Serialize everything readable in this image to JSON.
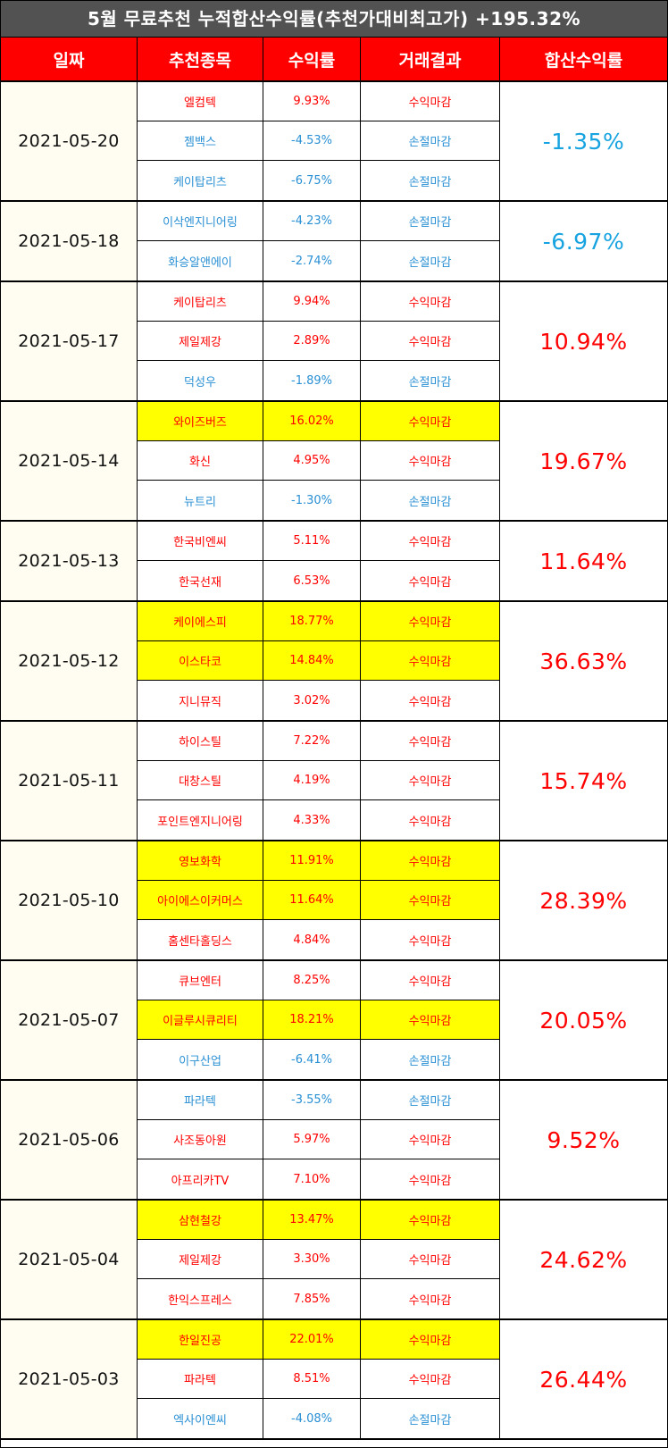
{
  "title": "5월 무료추천 누적합산수익률(추천가대비최고가) +195.32%",
  "headers": {
    "date": "일짜",
    "stock": "추천종목",
    "rate": "수익률",
    "result": "거래결과",
    "total": "합산수익률"
  },
  "colors": {
    "profit": "#ff0000",
    "loss": "#2a90d4",
    "highlight": "#ffff00",
    "header_bg": "#ff0000",
    "title_bg": "#525252"
  },
  "groups": [
    {
      "date": "2021-05-20",
      "total": "-1.35%",
      "total_sign": "neg",
      "rows": [
        {
          "stock": "엘컴텍",
          "rate": "9.93%",
          "result": "수익마감",
          "type": "profit",
          "highlight": false
        },
        {
          "stock": "젬백스",
          "rate": "-4.53%",
          "result": "손절마감",
          "type": "loss",
          "highlight": false
        },
        {
          "stock": "케이탑리츠",
          "rate": "-6.75%",
          "result": "손절마감",
          "type": "loss",
          "highlight": false
        }
      ]
    },
    {
      "date": "2021-05-18",
      "total": "-6.97%",
      "total_sign": "neg",
      "rows": [
        {
          "stock": "이삭엔지니어링",
          "rate": "-4.23%",
          "result": "손절마감",
          "type": "loss",
          "highlight": false
        },
        {
          "stock": "화승알앤에이",
          "rate": "-2.74%",
          "result": "손절마감",
          "type": "loss",
          "highlight": false
        }
      ]
    },
    {
      "date": "2021-05-17",
      "total": "10.94%",
      "total_sign": "pos",
      "rows": [
        {
          "stock": "케이탑리츠",
          "rate": "9.94%",
          "result": "수익마감",
          "type": "profit",
          "highlight": false
        },
        {
          "stock": "제일제강",
          "rate": "2.89%",
          "result": "수익마감",
          "type": "profit",
          "highlight": false
        },
        {
          "stock": "덕성우",
          "rate": "-1.89%",
          "result": "손절마감",
          "type": "loss",
          "highlight": false
        }
      ]
    },
    {
      "date": "2021-05-14",
      "total": "19.67%",
      "total_sign": "pos",
      "rows": [
        {
          "stock": "와이즈버즈",
          "rate": "16.02%",
          "result": "수익마감",
          "type": "profit",
          "highlight": true
        },
        {
          "stock": "화신",
          "rate": "4.95%",
          "result": "수익마감",
          "type": "profit",
          "highlight": false
        },
        {
          "stock": "뉴트리",
          "rate": "-1.30%",
          "result": "손절마감",
          "type": "loss",
          "highlight": false
        }
      ]
    },
    {
      "date": "2021-05-13",
      "total": "11.64%",
      "total_sign": "pos",
      "rows": [
        {
          "stock": "한국비엔씨",
          "rate": "5.11%",
          "result": "수익마감",
          "type": "profit",
          "highlight": false
        },
        {
          "stock": "한국선재",
          "rate": "6.53%",
          "result": "수익마감",
          "type": "profit",
          "highlight": false
        }
      ]
    },
    {
      "date": "2021-05-12",
      "total": "36.63%",
      "total_sign": "pos",
      "rows": [
        {
          "stock": "케이에스피",
          "rate": "18.77%",
          "result": "수익마감",
          "type": "profit",
          "highlight": true
        },
        {
          "stock": "이스타코",
          "rate": "14.84%",
          "result": "수익마감",
          "type": "profit",
          "highlight": true
        },
        {
          "stock": "지니뮤직",
          "rate": "3.02%",
          "result": "수익마감",
          "type": "profit",
          "highlight": false
        }
      ]
    },
    {
      "date": "2021-05-11",
      "total": "15.74%",
      "total_sign": "pos",
      "rows": [
        {
          "stock": "하이스틸",
          "rate": "7.22%",
          "result": "수익마감",
          "type": "profit",
          "highlight": false
        },
        {
          "stock": "대창스틸",
          "rate": "4.19%",
          "result": "수익마감",
          "type": "profit",
          "highlight": false
        },
        {
          "stock": "포인트엔지니어링",
          "rate": "4.33%",
          "result": "수익마감",
          "type": "profit",
          "highlight": false
        }
      ]
    },
    {
      "date": "2021-05-10",
      "total": "28.39%",
      "total_sign": "pos",
      "rows": [
        {
          "stock": "영보화학",
          "rate": "11.91%",
          "result": "수익마감",
          "type": "profit",
          "highlight": true
        },
        {
          "stock": "아이에스이커머스",
          "rate": "11.64%",
          "result": "수익마감",
          "type": "profit",
          "highlight": true
        },
        {
          "stock": "홈센타홀딩스",
          "rate": "4.84%",
          "result": "수익마감",
          "type": "profit",
          "highlight": false
        }
      ]
    },
    {
      "date": "2021-05-07",
      "total": "20.05%",
      "total_sign": "pos",
      "rows": [
        {
          "stock": "큐브엔터",
          "rate": "8.25%",
          "result": "수익마감",
          "type": "profit",
          "highlight": false
        },
        {
          "stock": "이글루시큐리티",
          "rate": "18.21%",
          "result": "수익마감",
          "type": "profit",
          "highlight": true
        },
        {
          "stock": "이구산업",
          "rate": "-6.41%",
          "result": "손절마감",
          "type": "loss",
          "highlight": false
        }
      ]
    },
    {
      "date": "2021-05-06",
      "total": "9.52%",
      "total_sign": "pos",
      "rows": [
        {
          "stock": "파라텍",
          "rate": "-3.55%",
          "result": "손절마감",
          "type": "loss",
          "highlight": false
        },
        {
          "stock": "사조동아원",
          "rate": "5.97%",
          "result": "수익마감",
          "type": "profit",
          "highlight": false
        },
        {
          "stock": "아프리카TV",
          "rate": "7.10%",
          "result": "수익마감",
          "type": "profit",
          "highlight": false
        }
      ]
    },
    {
      "date": "2021-05-04",
      "total": "24.62%",
      "total_sign": "pos",
      "rows": [
        {
          "stock": "삼현철강",
          "rate": "13.47%",
          "result": "수익마감",
          "type": "profit",
          "highlight": true
        },
        {
          "stock": "제일제강",
          "rate": "3.30%",
          "result": "수익마감",
          "type": "profit",
          "highlight": false
        },
        {
          "stock": "한익스프레스",
          "rate": "7.85%",
          "result": "수익마감",
          "type": "profit",
          "highlight": false
        }
      ]
    },
    {
      "date": "2021-05-03",
      "total": "26.44%",
      "total_sign": "pos",
      "rows": [
        {
          "stock": "한일진공",
          "rate": "22.01%",
          "result": "수익마감",
          "type": "profit",
          "highlight": true
        },
        {
          "stock": "파라텍",
          "rate": "8.51%",
          "result": "수익마감",
          "type": "profit",
          "highlight": false
        },
        {
          "stock": "엑사이엔씨",
          "rate": "-4.08%",
          "result": "손절마감",
          "type": "loss",
          "highlight": false
        }
      ]
    }
  ]
}
